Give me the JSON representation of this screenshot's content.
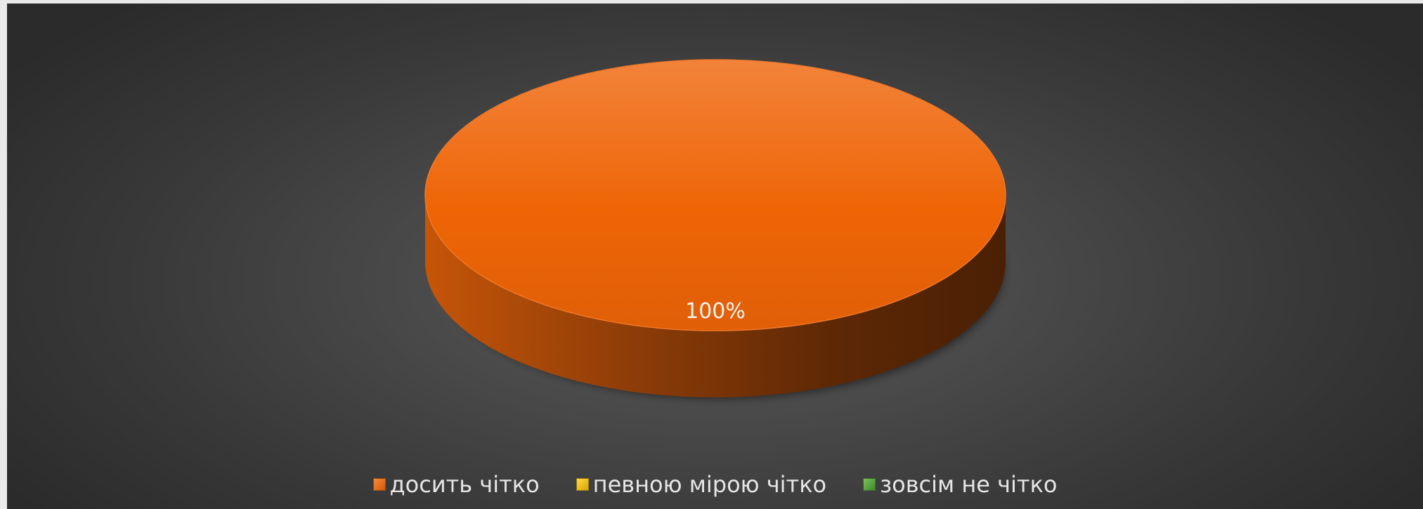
{
  "chart_data": {
    "type": "pie",
    "title": "",
    "categories": [
      "досить чітко",
      "певною мірою чітко",
      "зовсім не чітко"
    ],
    "values": [
      100,
      0,
      0
    ],
    "data_labels": [
      "100%"
    ],
    "colors": [
      "#ED6B0C",
      "#F2C100",
      "#5EA344"
    ],
    "legend_position": "bottom",
    "style": "3d"
  },
  "legend": {
    "items": [
      {
        "label": "досить чітко",
        "color": "#ED6B0C"
      },
      {
        "label": "певною мірою чітко",
        "color": "#F2C100"
      },
      {
        "label": "зовсім не чітко",
        "color": "#5EA344"
      }
    ]
  }
}
